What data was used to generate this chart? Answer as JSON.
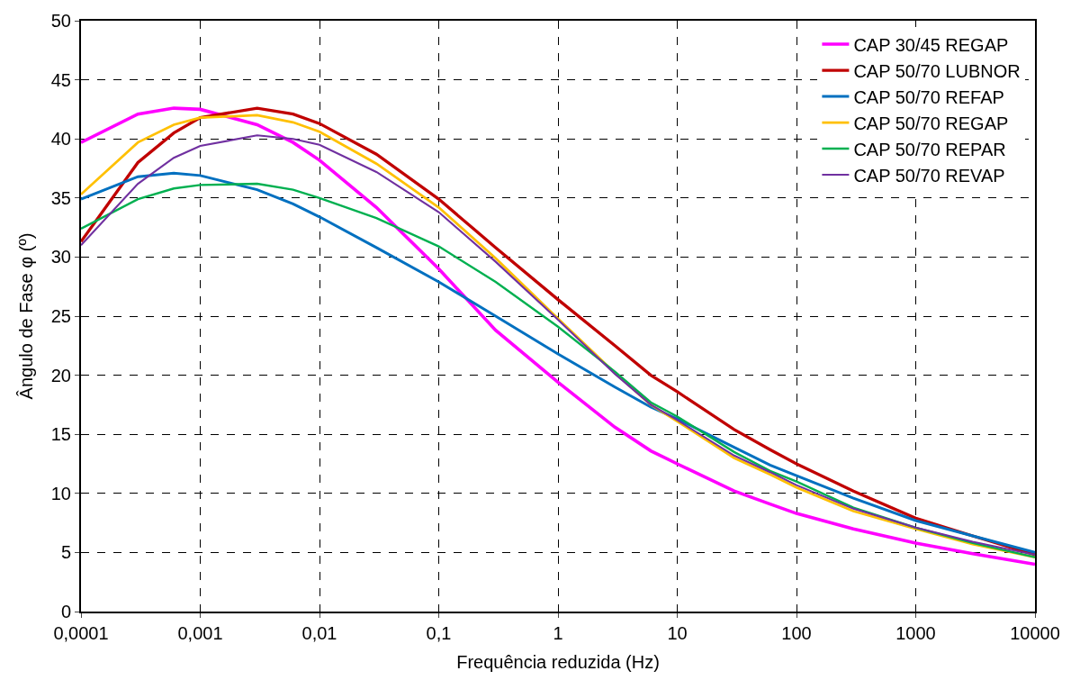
{
  "chart_data": {
    "type": "line",
    "xlabel": "Frequência reduzida (Hz)",
    "ylabel": "Ângulo de Fase φ (º)",
    "log": "x",
    "x": [
      0.0001,
      0.0003,
      0.0006,
      0.001,
      0.003,
      0.006,
      0.01,
      0.03,
      0.1,
      0.3,
      1,
      3,
      6,
      10,
      30,
      60,
      100,
      300,
      1000,
      3000,
      10000
    ],
    "series": [
      {
        "name": "CAP 30/45 REGAP",
        "color": "#ff00ff",
        "values": [
          39.7,
          42.1,
          42.6,
          42.5,
          41.2,
          39.7,
          38.2,
          34.2,
          29.0,
          23.8,
          19.4,
          15.6,
          13.6,
          12.5,
          10.2,
          9.1,
          8.3,
          7.0,
          5.8,
          4.9,
          4.0
        ]
      },
      {
        "name": "CAP 50/70 LUBNOR",
        "color": "#c00000",
        "values": [
          31.3,
          38.0,
          40.5,
          41.8,
          42.6,
          42.1,
          41.3,
          38.7,
          34.9,
          30.8,
          26.4,
          22.5,
          20.0,
          18.6,
          15.4,
          13.7,
          12.5,
          10.2,
          7.9,
          6.4,
          4.8
        ]
      },
      {
        "name": "CAP 50/70 REFAP",
        "color": "#0070c0",
        "values": [
          34.9,
          36.8,
          37.1,
          36.9,
          35.7,
          34.5,
          33.4,
          30.8,
          27.9,
          25.0,
          21.8,
          19.0,
          17.3,
          16.3,
          13.9,
          12.4,
          11.5,
          9.6,
          7.7,
          6.4,
          5.0
        ]
      },
      {
        "name": "CAP 50/70 REGAP",
        "color": "#ffc000",
        "values": [
          35.3,
          39.7,
          41.2,
          41.8,
          42.0,
          41.4,
          40.6,
          37.9,
          34.2,
          29.9,
          24.8,
          20.2,
          17.5,
          16.1,
          13.0,
          11.6,
          10.5,
          8.5,
          7.0,
          5.7,
          4.6
        ]
      },
      {
        "name": "CAP 50/70 REPAR",
        "color": "#00b050",
        "values": [
          32.4,
          34.9,
          35.8,
          36.1,
          36.2,
          35.7,
          35.0,
          33.3,
          30.9,
          27.9,
          24.1,
          20.3,
          17.7,
          16.5,
          13.5,
          11.9,
          11.0,
          8.8,
          7.1,
          5.8,
          4.6
        ]
      },
      {
        "name": "CAP 50/70 REVAP",
        "color": "#7030a0",
        "values": [
          31.0,
          36.2,
          38.4,
          39.4,
          40.3,
          40.0,
          39.5,
          37.2,
          33.8,
          29.6,
          24.7,
          20.1,
          17.5,
          16.2,
          13.2,
          11.8,
          10.7,
          8.7,
          7.1,
          5.9,
          4.8
        ]
      }
    ],
    "xlim": [
      0.0001,
      10000
    ],
    "xticks": [
      {
        "value": 0.0001,
        "label": "0,0001"
      },
      {
        "value": 0.001,
        "label": "0,001"
      },
      {
        "value": 0.01,
        "label": "0,01"
      },
      {
        "value": 0.1,
        "label": "0,1"
      },
      1,
      10,
      100,
      1000,
      10000
    ],
    "ylim": [
      0,
      50
    ],
    "yticks": [
      0,
      5,
      10,
      15,
      20,
      25,
      30,
      35,
      40,
      45,
      50
    ],
    "grid": true,
    "legend": "top right",
    "marker": "none",
    "line_style": "solid"
  }
}
